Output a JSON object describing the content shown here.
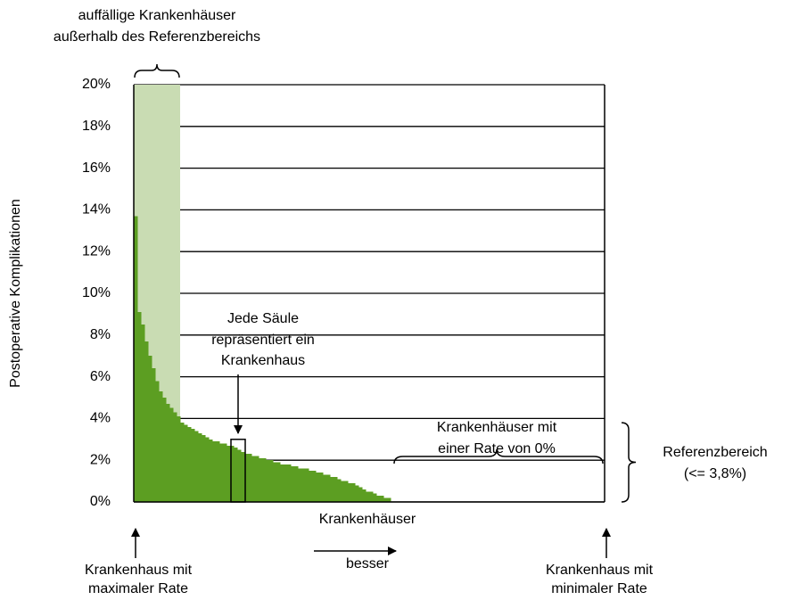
{
  "chart_data": {
    "type": "bar",
    "y_label": "Postoperative Komplikationen",
    "x_label": "Krankenhäuser",
    "color": "#5c9e22",
    "highlight_color": "#c9dcb3",
    "ylim": [
      0,
      20
    ],
    "yticks": [
      {
        "value": 0,
        "label": "0%"
      },
      {
        "value": 2,
        "label": "2%"
      },
      {
        "value": 4,
        "label": "4%"
      },
      {
        "value": 6,
        "label": "6%"
      },
      {
        "value": 8,
        "label": "8%"
      },
      {
        "value": 10,
        "label": "10%"
      },
      {
        "value": 12,
        "label": "12%"
      },
      {
        "value": 14,
        "label": "14%"
      },
      {
        "value": 16,
        "label": "16%"
      },
      {
        "value": 18,
        "label": "18%"
      },
      {
        "value": 20,
        "label": "20%"
      }
    ],
    "grid": true,
    "values": [
      13.7,
      9.1,
      8.5,
      7.7,
      7.0,
      6.4,
      5.8,
      5.3,
      5.0,
      4.7,
      4.5,
      4.3,
      4.1,
      3.8,
      3.7,
      3.6,
      3.5,
      3.4,
      3.3,
      3.2,
      3.1,
      3.0,
      2.9,
      2.9,
      2.8,
      2.8,
      2.7,
      2.7,
      2.6,
      2.5,
      2.4,
      2.3,
      2.3,
      2.2,
      2.2,
      2.1,
      2.1,
      2.0,
      2.0,
      1.9,
      1.9,
      1.8,
      1.8,
      1.8,
      1.7,
      1.7,
      1.6,
      1.6,
      1.6,
      1.5,
      1.5,
      1.4,
      1.4,
      1.3,
      1.3,
      1.2,
      1.2,
      1.1,
      1.0,
      1.0,
      0.9,
      0.9,
      0.8,
      0.7,
      0.6,
      0.5,
      0.5,
      0.4,
      0.3,
      0.3,
      0.2,
      0.2,
      0,
      0,
      0,
      0,
      0,
      0,
      0,
      0,
      0,
      0,
      0,
      0,
      0,
      0,
      0,
      0,
      0,
      0,
      0,
      0,
      0,
      0,
      0,
      0,
      0,
      0,
      0,
      0,
      0,
      0,
      0,
      0,
      0,
      0,
      0,
      0,
      0,
      0,
      0,
      0,
      0,
      0,
      0,
      0,
      0,
      0,
      0,
      0,
      0,
      0,
      0,
      0,
      0,
      0,
      0,
      0,
      0,
      0,
      0,
      0
    ],
    "annotations": {
      "outliers": [
        "auffällige Krankenhäuser",
        "außerhalb des Referenzbereichs"
      ],
      "each_bar": [
        "Jede Säule",
        "repräsentiert ein",
        "Krankenhaus"
      ],
      "zero_rate": [
        "Krankenhäuser mit",
        "einer Rate von 0%"
      ],
      "reference": {
        "label": "Referenzbereich",
        "limit": {
          "value": 3.8,
          "label": "(<= 3,8%)"
        }
      },
      "max": [
        "Krankenhaus mit",
        "maximaler Rate"
      ],
      "better": "besser",
      "min": [
        "Krankenhaus mit",
        "minimaler Rate"
      ]
    }
  }
}
